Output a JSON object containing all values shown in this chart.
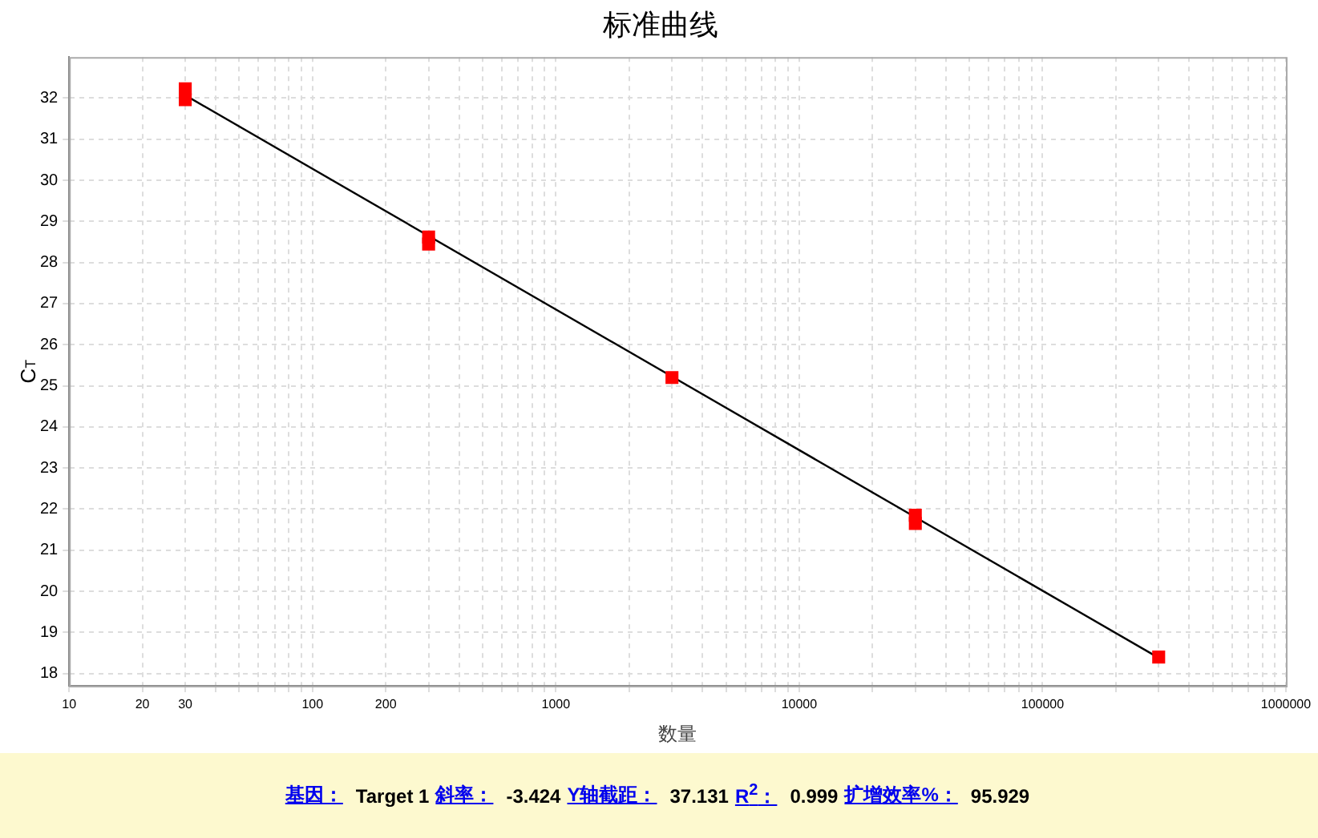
{
  "chart_data": {
    "type": "scatter",
    "title": "标准曲线",
    "xlabel": "数量",
    "ylabel": "C$_{T}$",
    "series": [
      {
        "color": "#ff0000",
        "marker": "square",
        "x": [
          30,
          30,
          300,
          300,
          3000,
          30000,
          30000,
          300000
        ],
        "values": [
          32.23,
          31.96,
          28.62,
          28.45,
          25.2,
          21.85,
          21.65,
          18.4
        ]
      },
      {
        "type": "line",
        "color": "#000000",
        "marker": "none",
        "x": [
          30,
          300000
        ],
        "values": [
          32.07,
          18.38
        ]
      }
    ],
    "log": "x",
    "grid": true,
    "legend": false,
    "xlim": [
      10,
      1000000
    ],
    "xticks": [
      10,
      20,
      30,
      {
        "value": 40,
        "label": null
      },
      {
        "value": 50,
        "label": null
      },
      {
        "value": 60,
        "label": null
      },
      {
        "value": 70,
        "label": null
      },
      {
        "value": 80,
        "label": null
      },
      {
        "value": 90,
        "label": null
      },
      100,
      200,
      {
        "value": 300,
        "label": null
      },
      {
        "value": 400,
        "label": null
      },
      {
        "value": 500,
        "label": null
      },
      {
        "value": 600,
        "label": null
      },
      {
        "value": 700,
        "label": null
      },
      {
        "value": 800,
        "label": null
      },
      {
        "value": 900,
        "label": null
      },
      1000,
      {
        "value": 2000,
        "label": null
      },
      {
        "value": 3000,
        "label": null
      },
      {
        "value": 4000,
        "label": null
      },
      {
        "value": 5000,
        "label": null
      },
      {
        "value": 6000,
        "label": null
      },
      {
        "value": 7000,
        "label": null
      },
      {
        "value": 8000,
        "label": null
      },
      {
        "value": 9000,
        "label": null
      },
      10000,
      {
        "value": 20000,
        "label": null
      },
      {
        "value": 30000,
        "label": null
      },
      {
        "value": 40000,
        "label": null
      },
      {
        "value": 50000,
        "label": null
      },
      {
        "value": 60000,
        "label": null
      },
      {
        "value": 70000,
        "label": null
      },
      {
        "value": 80000,
        "label": null
      },
      {
        "value": 90000,
        "label": null
      },
      100000,
      {
        "value": 200000,
        "label": null
      },
      {
        "value": 300000,
        "label": null
      },
      {
        "value": 400000,
        "label": null
      },
      {
        "value": 500000,
        "label": null
      },
      {
        "value": 600000,
        "label": null
      },
      {
        "value": 700000,
        "label": null
      },
      {
        "value": 800000,
        "label": null
      },
      {
        "value": 900000,
        "label": null
      },
      1000000
    ],
    "ylim": [
      17.7,
      33
    ],
    "yticks": [
      18,
      19,
      20,
      21,
      22,
      23,
      24,
      25,
      26,
      27,
      28,
      29,
      30,
      31,
      32
    ],
    "annotations": [
      "基因：",
      "Target 1",
      "斜率：",
      "-3.424",
      "Y轴截距：",
      "37.131",
      "R$^{2}$：",
      "0.999",
      "扩增效率%：",
      "95.929"
    ]
  }
}
